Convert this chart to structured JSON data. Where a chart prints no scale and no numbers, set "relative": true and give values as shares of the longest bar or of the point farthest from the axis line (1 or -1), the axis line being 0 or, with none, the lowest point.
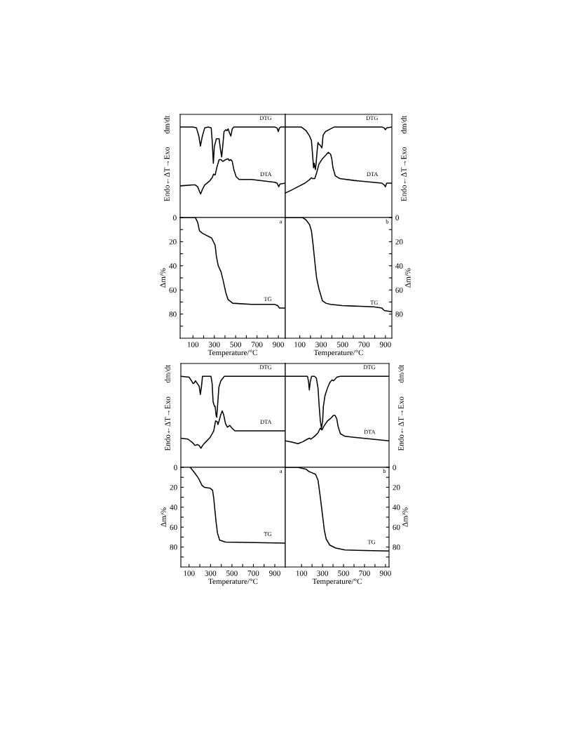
{
  "chart_data": [
    {
      "type": "line",
      "relative": true,
      "xlim": [
        -20,
        965
      ],
      "ylabel": "dm/dt",
      "annotations": [
        "Endo←ΔT→Exo"
      ],
      "series": [
        {
          "name": "DTG",
          "color": "#000000",
          "x": [
            -20,
            100,
            133,
            155,
            170,
            188,
            210,
            242,
            271,
            280,
            291,
            300,
            319,
            345,
            358,
            369,
            380,
            391,
            407,
            418,
            429,
            444,
            455,
            468,
            483,
            866,
            888,
            899,
            910,
            921,
            965
          ],
          "values": [
            1.0,
            1.0,
            0.99,
            0.9,
            0.79,
            0.9,
            0.99,
            1.0,
            0.99,
            0.85,
            0.6,
            0.78,
            0.87,
            0.87,
            0.75,
            0.67,
            0.8,
            0.95,
            0.97,
            0.96,
            0.98,
            0.93,
            0.9,
            0.98,
            1.0,
            1.0,
            0.99,
            0.95,
            0.99,
            1.0,
            1.0
          ]
        },
        {
          "name": "DTA",
          "color": "#000000",
          "x": [
            -20,
            100,
            122,
            144,
            161,
            172,
            188,
            210,
            253,
            280,
            293,
            308,
            323,
            345,
            363,
            380,
            407,
            429,
            439,
            455,
            468,
            483,
            505,
            534,
            648,
            866,
            888,
            904,
            915,
            965
          ],
          "values": [
            0.35,
            0.36,
            0.36,
            0.34,
            0.29,
            0.26,
            0.31,
            0.36,
            0.4,
            0.44,
            0.48,
            0.47,
            0.55,
            0.64,
            0.64,
            0.62,
            0.64,
            0.65,
            0.63,
            0.64,
            0.62,
            0.53,
            0.45,
            0.42,
            0.42,
            0.39,
            0.38,
            0.34,
            0.37,
            0.38
          ]
        }
      ]
    },
    {
      "type": "line",
      "relative": true,
      "xlim": [
        -35,
        960
      ],
      "y2label": "dm/dt",
      "annotations": [
        "Endo←ΔT→Exo"
      ],
      "series": [
        {
          "name": "DTG",
          "color": "#000000",
          "axis": "y2",
          "x": [
            -35,
            115,
            159,
            192,
            209,
            218,
            229,
            235,
            246,
            252,
            261,
            270,
            279,
            290,
            301,
            307,
            318,
            340,
            388,
            420,
            867,
            889,
            900,
            911,
            959
          ],
          "values": [
            1.0,
            1.0,
            0.96,
            0.9,
            0.85,
            0.72,
            0.55,
            0.6,
            0.53,
            0.59,
            0.72,
            0.83,
            0.81,
            0.8,
            0.78,
            0.77,
            0.91,
            0.95,
            0.98,
            1.0,
            1.0,
            0.99,
            0.97,
            0.99,
            1.0
          ]
        },
        {
          "name": "DTA",
          "color": "#000000",
          "axis": "y2",
          "x": [
            -35,
            17,
            83,
            148,
            192,
            209,
            218,
            229,
            240,
            257,
            279,
            312,
            344,
            366,
            388,
            399,
            410,
            432,
            475,
            606,
            867,
            889,
            900,
            911,
            959
          ],
          "values": [
            0.27,
            0.3,
            0.34,
            0.38,
            0.42,
            0.44,
            0.43,
            0.43,
            0.43,
            0.49,
            0.59,
            0.65,
            0.69,
            0.72,
            0.7,
            0.65,
            0.55,
            0.46,
            0.43,
            0.41,
            0.38,
            0.36,
            0.34,
            0.38,
            0.38
          ]
        }
      ]
    },
    {
      "type": "line",
      "xlim": [
        -20,
        965
      ],
      "ylim": [
        100,
        0
      ],
      "xlabel": "Temperature/°C",
      "ylabel": "Δm/%",
      "annotations": [
        "a"
      ],
      "xticks": [
        100,
        {
          "value": 200,
          "label": null
        },
        300,
        {
          "value": 400,
          "label": null
        },
        500,
        {
          "value": 600,
          "label": null
        },
        700,
        {
          "value": 800,
          "label": null
        },
        900
      ],
      "yticks": [
        0,
        {
          "value": 10,
          "label": null
        },
        20,
        {
          "value": 30,
          "label": null
        },
        40,
        {
          "value": 50,
          "label": null
        },
        60,
        {
          "value": 70,
          "label": null
        },
        80,
        {
          "value": 90,
          "label": null
        }
      ],
      "series": [
        {
          "name": "TG",
          "color": "#000000",
          "x": [
            -20,
            122,
            144,
            161,
            188,
            275,
            308,
            319,
            337,
            363,
            385,
            407,
            429,
            472,
            648,
            866,
            893,
            910,
            965
          ],
          "values": [
            0,
            0,
            4,
            11,
            13,
            17,
            23,
            32,
            40,
            45,
            53,
            62,
            68,
            71,
            72,
            72,
            73,
            75,
            75
          ]
        }
      ]
    },
    {
      "type": "line",
      "xlim": [
        -35,
        960
      ],
      "y2lim": [
        100,
        0
      ],
      "xlabel": "Temperature/°C",
      "y2label": "Δm/%",
      "annotations": [
        "b"
      ],
      "xticks": [
        100,
        {
          "value": 200,
          "label": null
        },
        300,
        {
          "value": 400,
          "label": null
        },
        500,
        {
          "value": 600,
          "label": null
        },
        700,
        {
          "value": 800,
          "label": null
        },
        900
      ],
      "y2ticks": [
        0,
        {
          "value": 10,
          "label": null
        },
        20,
        {
          "value": 30,
          "label": null
        },
        40,
        {
          "value": 50,
          "label": null
        },
        60,
        {
          "value": 70,
          "label": null
        },
        80,
        {
          "value": 90,
          "label": null
        }
      ],
      "series": [
        {
          "name": "TG",
          "color": "#000000",
          "axis": "y2",
          "x": [
            -35,
            126,
            159,
            192,
            209,
            224,
            240,
            257,
            279,
            312,
            344,
            388,
            497,
            792,
            867,
            889,
            959
          ],
          "values": [
            0,
            0,
            2,
            6,
            11,
            22,
            36,
            50,
            59,
            69,
            71,
            72,
            73,
            74,
            75,
            77,
            78
          ]
        }
      ]
    },
    {
      "type": "line",
      "relative": true,
      "xlim": [
        23,
        998
      ],
      "ylabel": "dm/dt",
      "annotations": [
        "Endo←ΔT→Exo"
      ],
      "series": [
        {
          "name": "DTG",
          "color": "#000000",
          "x": [
            23,
            100,
            122,
            137,
            150,
            159,
            177,
            194,
            205,
            216,
            225,
            304,
            315,
            324,
            337,
            343,
            352,
            358,
            369,
            378,
            396,
            429,
            998
          ],
          "values": [
            1.0,
            0.99,
            0.95,
            0.92,
            0.93,
            0.95,
            0.92,
            0.89,
            0.8,
            0.89,
            1.0,
            1.0,
            0.92,
            0.72,
            0.67,
            0.67,
            0.57,
            0.55,
            0.73,
            0.88,
            0.95,
            1.0,
            1.0
          ]
        },
        {
          "name": "DTA",
          "color": "#000000",
          "x": [
            23,
            89,
            133,
            155,
            177,
            194,
            210,
            232,
            265,
            297,
            330,
            347,
            363,
            369,
            380,
            396,
            409,
            422,
            440,
            457,
            479,
            501,
            527,
            680,
            998
          ],
          "values": [
            0.32,
            0.31,
            0.27,
            0.24,
            0.25,
            0.24,
            0.21,
            0.25,
            0.29,
            0.33,
            0.4,
            0.51,
            0.5,
            0.47,
            0.51,
            0.58,
            0.62,
            0.58,
            0.48,
            0.44,
            0.46,
            0.43,
            0.4,
            0.4,
            0.4
          ]
        }
      ]
    },
    {
      "type": "line",
      "relative": true,
      "xlim": [
        -55,
        934
      ],
      "y2label": "dm/dt",
      "annotations": [
        "Endo←ΔT→Exo"
      ],
      "series": [
        {
          "name": "DTG",
          "color": "#000000",
          "axis": "y2",
          "x": [
            -55,
            156,
            167,
            174,
            183,
            196,
            223,
            241,
            257,
            268,
            279,
            290,
            301,
            308,
            324,
            347,
            369,
            391,
            403,
            414,
            436,
            470,
            934
          ],
          "values": [
            1.0,
            1.0,
            0.94,
            0.85,
            0.94,
            1.0,
            1.0,
            0.98,
            0.87,
            0.67,
            0.51,
            0.43,
            0.51,
            0.67,
            0.79,
            0.87,
            0.93,
            0.96,
            0.95,
            0.96,
            0.99,
            1.0,
            1.0
          ]
        },
        {
          "name": "DTA",
          "color": "#000000",
          "axis": "y2",
          "x": [
            -55,
            -1,
            66,
            111,
            156,
            174,
            190,
            223,
            257,
            279,
            295,
            312,
            347,
            380,
            403,
            420,
            436,
            448,
            470,
            515,
            934
          ],
          "values": [
            0.29,
            0.28,
            0.26,
            0.28,
            0.31,
            0.32,
            0.31,
            0.34,
            0.38,
            0.43,
            0.41,
            0.45,
            0.51,
            0.54,
            0.57,
            0.57,
            0.53,
            0.45,
            0.37,
            0.34,
            0.29
          ]
        }
      ]
    },
    {
      "type": "line",
      "xlim": [
        23,
        998
      ],
      "ylim": [
        100,
        0
      ],
      "xlabel": "Temperature/°C",
      "ylabel": "Δm/%",
      "annotations": [
        "a"
      ],
      "xticks": [
        100,
        {
          "value": 200,
          "label": null
        },
        300,
        {
          "value": 400,
          "label": null
        },
        500,
        {
          "value": 600,
          "label": null
        },
        700,
        {
          "value": 800,
          "label": null
        },
        900
      ],
      "yticks": [
        0,
        {
          "value": 10,
          "label": null
        },
        20,
        {
          "value": 30,
          "label": null
        },
        40,
        {
          "value": 50,
          "label": null
        },
        60,
        {
          "value": 70,
          "label": null
        },
        80,
        {
          "value": 90,
          "label": null
        }
      ],
      "series": [
        {
          "name": "TG",
          "color": "#000000",
          "x": [
            111,
            155,
            188,
            220,
            242,
            297,
            319,
            330,
            341,
            352,
            365,
            385,
            440,
            998
          ],
          "values": [
            0,
            6,
            11,
            18,
            20,
            21,
            23,
            31,
            43,
            55,
            66,
            73,
            75,
            76
          ]
        }
      ]
    },
    {
      "type": "line",
      "xlim": [
        -55,
        934
      ],
      "y2lim": [
        100,
        0
      ],
      "xlabel": "Temperature/°C",
      "y2label": "Δm/%",
      "annotations": [
        "b"
      ],
      "xticks": [
        100,
        {
          "value": 200,
          "label": null
        },
        300,
        {
          "value": 400,
          "label": null
        },
        500,
        {
          "value": 600,
          "label": null
        },
        700,
        {
          "value": 800,
          "label": null
        },
        900
      ],
      "y2ticks": [
        0,
        {
          "value": 10,
          "label": null
        },
        20,
        {
          "value": 30,
          "label": null
        },
        40,
        {
          "value": 50,
          "label": null
        },
        60,
        {
          "value": 70,
          "label": null
        },
        80,
        {
          "value": 90,
          "label": null
        }
      ],
      "series": [
        {
          "name": "TG",
          "color": "#000000",
          "axis": "y2",
          "x": [
            -55,
            66,
            145,
            167,
            190,
            234,
            257,
            279,
            301,
            317,
            335,
            369,
            425,
            515,
            934
          ],
          "values": [
            0,
            0,
            2,
            4,
            5,
            7,
            13,
            30,
            49,
            63,
            72,
            78,
            81,
            83,
            84
          ]
        }
      ]
    }
  ]
}
